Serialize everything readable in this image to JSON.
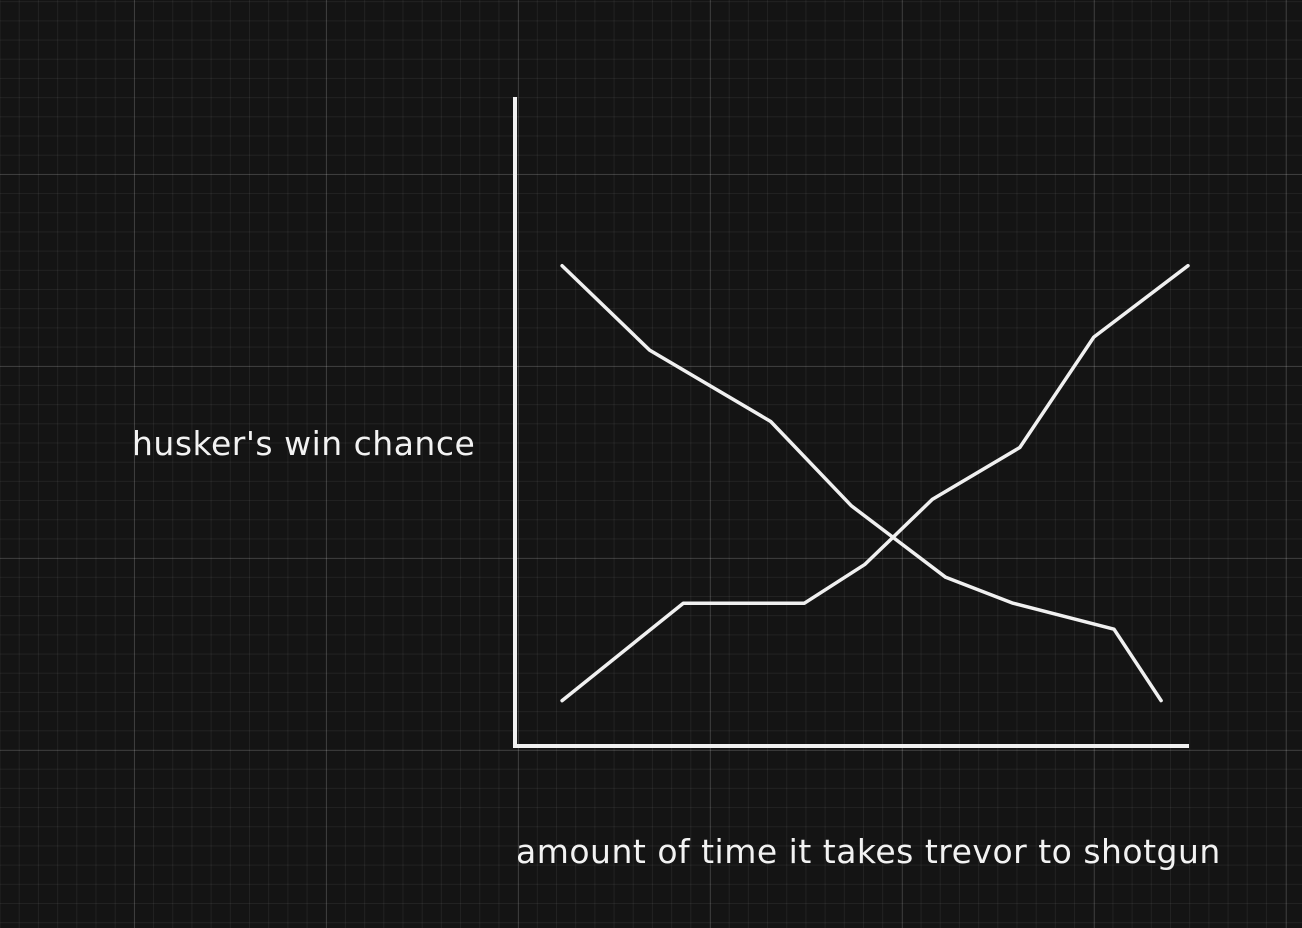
{
  "chart_data": {
    "type": "line",
    "title": "",
    "xlabel": "amount of time it takes trevor to shotgun",
    "ylabel": "husker's win chance",
    "xlim": [
      0,
      100
    ],
    "ylim": [
      0,
      100
    ],
    "grid": true,
    "axes_ticks": false,
    "legend": "none",
    "line_color": "#f0f0f0",
    "background_color": "#141414",
    "series": [
      {
        "x": [
          7,
          20,
          38,
          50,
          64,
          74,
          89,
          96
        ],
        "y": [
          74,
          61,
          50,
          37,
          26,
          22,
          18,
          7
        ]
      },
      {
        "x": [
          7,
          25,
          43,
          52,
          62,
          75,
          86,
          100
        ],
        "y": [
          7,
          22,
          22,
          28,
          38,
          46,
          63,
          74
        ]
      }
    ]
  }
}
